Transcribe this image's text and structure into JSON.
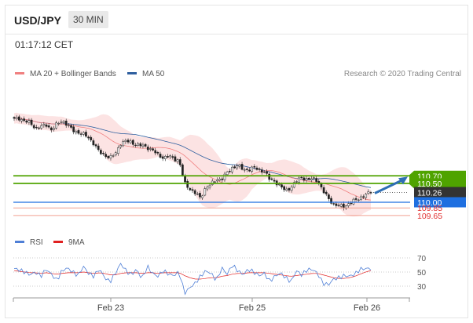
{
  "header": {
    "symbol": "USD/JPY",
    "timeframe": "30 MIN"
  },
  "timestamp": "01:17:12 CET",
  "legend_main": [
    {
      "name": "MA 20 + Bollinger Bands",
      "color": "#f08080"
    },
    {
      "name": "MA 50",
      "color": "#2f5f9f"
    }
  ],
  "credit": "Research © 2020 Trading Central",
  "legend_rsi": [
    {
      "name": "RSI",
      "color": "#4f7fd6"
    },
    {
      "name": "9MA",
      "color": "#e02020"
    }
  ],
  "chart_data": [
    {
      "type": "candlestick",
      "price_levels": [
        {
          "value": 110.7,
          "label": "110.70",
          "kind": "resistance",
          "color": "#4fa300"
        },
        {
          "value": 110.5,
          "label": "110.50",
          "kind": "resistance",
          "color": "#4fa300"
        },
        {
          "value": 110.26,
          "label": "110.26",
          "kind": "last",
          "color": "#333333"
        },
        {
          "value": 110.0,
          "label": "110.00",
          "kind": "pivot",
          "color": "#1e6fe0"
        },
        {
          "value": 109.85,
          "label": "109.85",
          "kind": "support",
          "color": "#e03030"
        },
        {
          "value": 109.65,
          "label": "109.65",
          "kind": "support",
          "color": "#e03030"
        }
      ],
      "x_ticks": [
        "Feb 23",
        "Feb 25",
        "Feb 26"
      ],
      "price_path": [
        112.2,
        112.22,
        112.15,
        112.1,
        111.96,
        112.0,
        112.05,
        111.92,
        112.06,
        112.16,
        112.05,
        111.9,
        111.85,
        111.8,
        111.7,
        111.55,
        111.32,
        111.25,
        111.18,
        111.28,
        111.56,
        111.62,
        111.58,
        111.52,
        111.5,
        111.45,
        111.38,
        111.25,
        111.18,
        111.22,
        111.15,
        111.1,
        110.5,
        110.35,
        110.25,
        110.1,
        110.4,
        110.48,
        110.6,
        110.62,
        110.78,
        110.92,
        110.98,
        110.86,
        110.86,
        110.92,
        110.85,
        110.82,
        110.6,
        110.55,
        110.42,
        110.3,
        110.4,
        110.56,
        110.66,
        110.6,
        110.62,
        110.58,
        110.3,
        110.1,
        109.95,
        109.9,
        109.88,
        109.98,
        110.05,
        110.12,
        110.2,
        110.26
      ],
      "rsi_levels": [
        70,
        50,
        30
      ],
      "rsi_path": [
        55,
        53,
        50,
        46,
        50,
        44,
        54,
        47,
        38,
        52,
        56,
        50,
        45,
        58,
        48,
        44,
        55,
        42,
        36,
        48,
        62,
        52,
        46,
        54,
        40,
        58,
        48,
        44,
        52,
        47,
        45,
        50,
        20,
        28,
        34,
        44,
        52,
        48,
        38,
        56,
        47,
        60,
        52,
        46,
        54,
        50,
        45,
        48,
        37,
        44,
        49,
        42,
        36,
        52,
        46,
        53,
        54,
        48,
        34,
        32,
        40,
        42,
        45,
        44,
        47,
        54,
        55,
        55
      ],
      "rsi_ma_path": [
        52,
        51,
        50,
        49,
        49,
        48,
        49,
        48,
        47,
        48,
        49,
        49,
        49,
        50,
        49,
        48,
        49,
        48,
        46,
        46,
        48,
        49,
        49,
        49,
        48,
        49,
        49,
        48,
        49,
        49,
        49,
        49,
        45,
        42,
        40,
        40,
        41,
        42,
        42,
        44,
        45,
        47,
        48,
        48,
        49,
        49,
        49,
        49,
        48,
        47,
        46,
        45,
        44,
        45,
        46,
        47,
        48,
        48,
        46,
        44,
        42,
        41,
        41,
        42,
        44,
        47,
        50,
        52
      ]
    }
  ]
}
